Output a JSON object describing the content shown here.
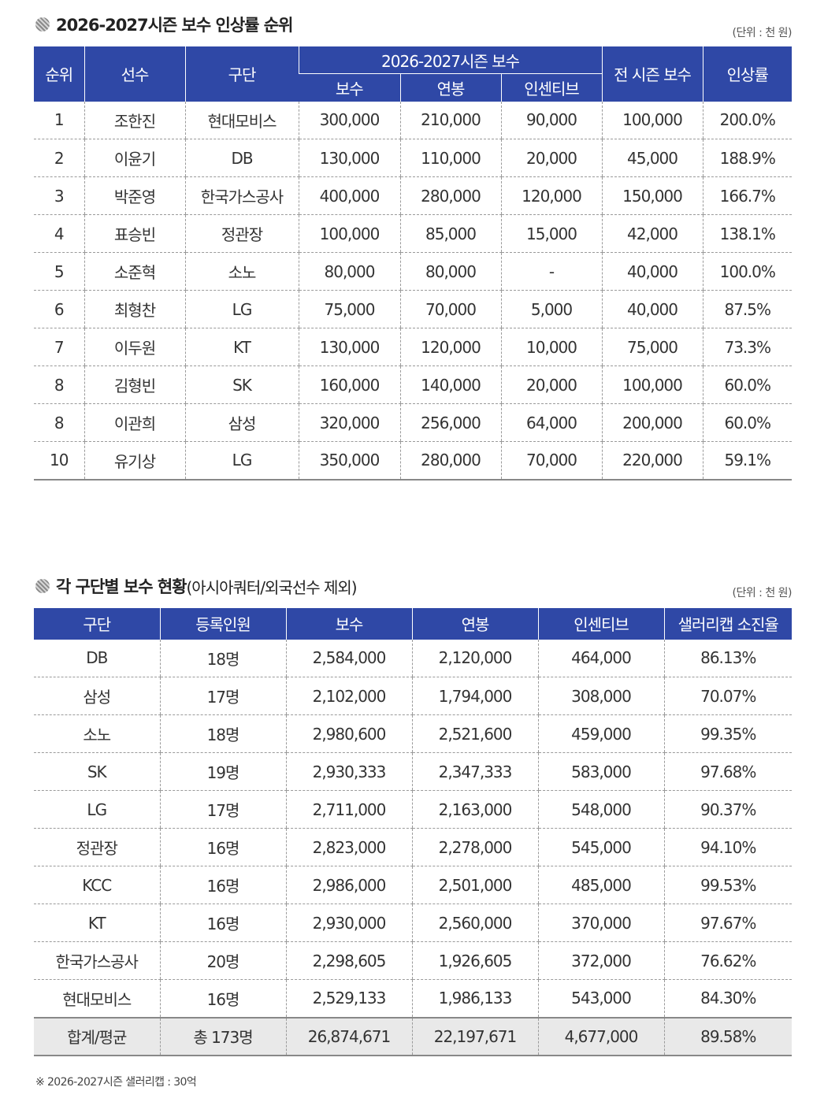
{
  "section1": {
    "title": "2026-2027시즌 보수 인상률 순위",
    "unit": "(단위 : 천 원)",
    "headers": {
      "rank": "순위",
      "player": "선수",
      "team": "구단",
      "group": "2026-2027시즌 보수",
      "pay": "보수",
      "salary": "연봉",
      "incentive": "인센티브",
      "prev": "전 시즌 보수",
      "rate": "인상률"
    },
    "rows": [
      {
        "rank": "1",
        "player": "조한진",
        "team": "현대모비스",
        "pay": "300,000",
        "salary": "210,000",
        "incentive": "90,000",
        "prev": "100,000",
        "rate": "200.0%"
      },
      {
        "rank": "2",
        "player": "이윤기",
        "team": "DB",
        "pay": "130,000",
        "salary": "110,000",
        "incentive": "20,000",
        "prev": "45,000",
        "rate": "188.9%"
      },
      {
        "rank": "3",
        "player": "박준영",
        "team": "한국가스공사",
        "pay": "400,000",
        "salary": "280,000",
        "incentive": "120,000",
        "prev": "150,000",
        "rate": "166.7%"
      },
      {
        "rank": "4",
        "player": "표승빈",
        "team": "정관장",
        "pay": "100,000",
        "salary": "85,000",
        "incentive": "15,000",
        "prev": "42,000",
        "rate": "138.1%"
      },
      {
        "rank": "5",
        "player": "소준혁",
        "team": "소노",
        "pay": "80,000",
        "salary": "80,000",
        "incentive": "-",
        "prev": "40,000",
        "rate": "100.0%"
      },
      {
        "rank": "6",
        "player": "최형찬",
        "team": "LG",
        "pay": "75,000",
        "salary": "70,000",
        "incentive": "5,000",
        "prev": "40,000",
        "rate": "87.5%"
      },
      {
        "rank": "7",
        "player": "이두원",
        "team": "KT",
        "pay": "130,000",
        "salary": "120,000",
        "incentive": "10,000",
        "prev": "75,000",
        "rate": "73.3%"
      },
      {
        "rank": "8",
        "player": "김형빈",
        "team": "SK",
        "pay": "160,000",
        "salary": "140,000",
        "incentive": "20,000",
        "prev": "100,000",
        "rate": "60.0%"
      },
      {
        "rank": "8",
        "player": "이관희",
        "team": "삼성",
        "pay": "320,000",
        "salary": "256,000",
        "incentive": "64,000",
        "prev": "200,000",
        "rate": "60.0%"
      },
      {
        "rank": "10",
        "player": "유기상",
        "team": "LG",
        "pay": "350,000",
        "salary": "280,000",
        "incentive": "70,000",
        "prev": "220,000",
        "rate": "59.1%"
      }
    ]
  },
  "section2": {
    "title": "각 구단별 보수 현황",
    "subtitle": "(아시아쿼터/외국선수 제외)",
    "unit": "(단위 : 천 원)",
    "headers": {
      "team": "구단",
      "count": "등록인원",
      "pay": "보수",
      "salary": "연봉",
      "incentive": "인센티브",
      "cap": "샐러리캡 소진율"
    },
    "rows": [
      {
        "team": "DB",
        "count": "18명",
        "pay": "2,584,000",
        "salary": "2,120,000",
        "incentive": "464,000",
        "cap": "86.13%"
      },
      {
        "team": "삼성",
        "count": "17명",
        "pay": "2,102,000",
        "salary": "1,794,000",
        "incentive": "308,000",
        "cap": "70.07%"
      },
      {
        "team": "소노",
        "count": "18명",
        "pay": "2,980,600",
        "salary": "2,521,600",
        "incentive": "459,000",
        "cap": "99.35%"
      },
      {
        "team": "SK",
        "count": "19명",
        "pay": "2,930,333",
        "salary": "2,347,333",
        "incentive": "583,000",
        "cap": "97.68%"
      },
      {
        "team": "LG",
        "count": "17명",
        "pay": "2,711,000",
        "salary": "2,163,000",
        "incentive": "548,000",
        "cap": "90.37%"
      },
      {
        "team": "정관장",
        "count": "16명",
        "pay": "2,823,000",
        "salary": "2,278,000",
        "incentive": "545,000",
        "cap": "94.10%"
      },
      {
        "team": "KCC",
        "count": "16명",
        "pay": "2,986,000",
        "salary": "2,501,000",
        "incentive": "485,000",
        "cap": "99.53%"
      },
      {
        "team": "KT",
        "count": "16명",
        "pay": "2,930,000",
        "salary": "2,560,000",
        "incentive": "370,000",
        "cap": "97.67%"
      },
      {
        "team": "한국가스공사",
        "count": "20명",
        "pay": "2,298,605",
        "salary": "1,926,605",
        "incentive": "372,000",
        "cap": "76.62%"
      },
      {
        "team": "현대모비스",
        "count": "16명",
        "pay": "2,529,133",
        "salary": "1,986,133",
        "incentive": "543,000",
        "cap": "84.30%"
      }
    ],
    "total": {
      "team": "합계/평균",
      "count": "총 173명",
      "pay": "26,874,671",
      "salary": "22,197,671",
      "incentive": "4,677,000",
      "cap": "89.58%"
    }
  },
  "footnote": "※ 2026-2027시즌 샐러리캡 : 30억"
}
